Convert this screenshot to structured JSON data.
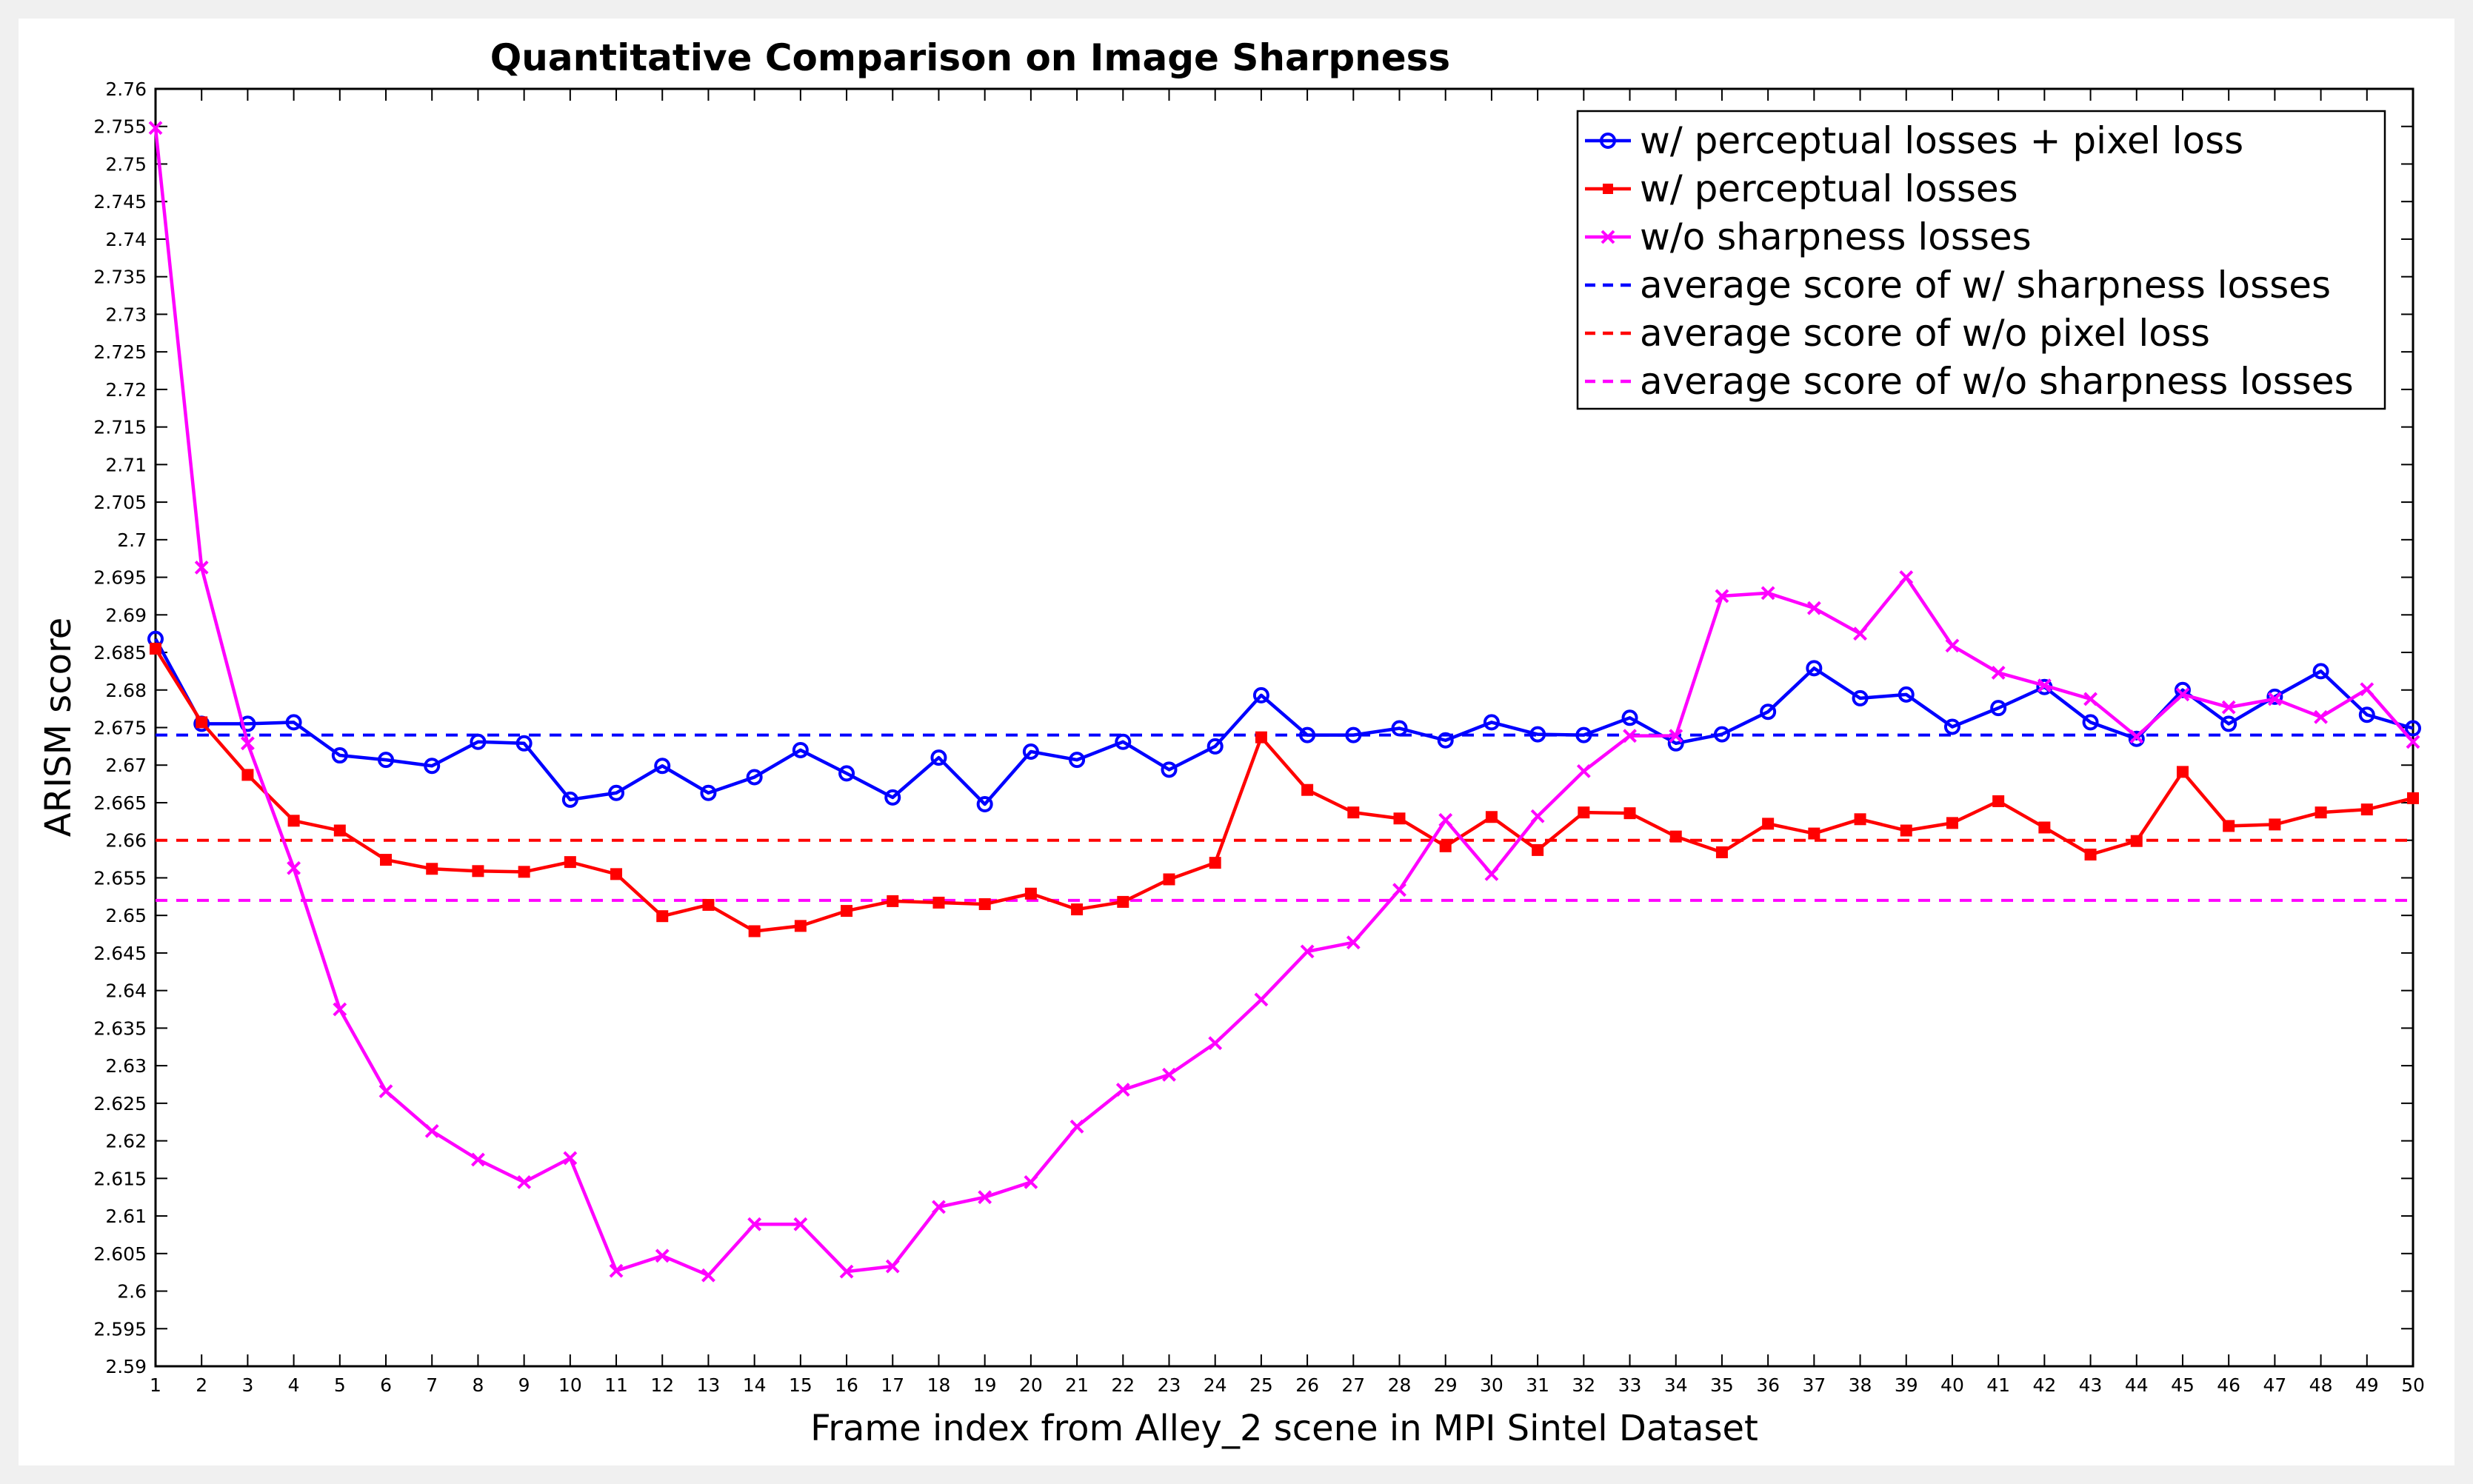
{
  "chart_data": {
    "type": "line",
    "title": "Quantitative Comparison on Image Sharpness",
    "xlabel": "Frame index from Alley_2 scene in MPI Sintel Dataset",
    "ylabel": "ARISM score",
    "xlim": [
      1,
      50
    ],
    "ylim": [
      2.59,
      2.76
    ],
    "x_ticks": [
      1,
      2,
      3,
      4,
      5,
      6,
      7,
      8,
      9,
      10,
      11,
      12,
      13,
      14,
      15,
      16,
      17,
      18,
      19,
      20,
      21,
      22,
      23,
      24,
      25,
      26,
      27,
      28,
      29,
      30,
      31,
      32,
      33,
      34,
      35,
      36,
      37,
      38,
      39,
      40,
      41,
      42,
      43,
      44,
      45,
      46,
      47,
      48,
      49,
      50
    ],
    "y_ticks": [
      2.59,
      2.595,
      2.6,
      2.605,
      2.61,
      2.615,
      2.62,
      2.625,
      2.63,
      2.635,
      2.64,
      2.645,
      2.65,
      2.655,
      2.66,
      2.665,
      2.67,
      2.675,
      2.68,
      2.685,
      2.69,
      2.695,
      2.7,
      2.705,
      2.71,
      2.715,
      2.72,
      2.725,
      2.73,
      2.735,
      2.74,
      2.745,
      2.75,
      2.755,
      2.76
    ],
    "y_tick_labels": [
      "2.59",
      "2.595",
      "2.6",
      "2.605",
      "2.61",
      "2.615",
      "2.62",
      "2.625",
      "2.63",
      "2.635",
      "2.64",
      "2.645",
      "2.65",
      "2.655",
      "2.66",
      "2.665",
      "2.67",
      "2.675",
      "2.68",
      "2.685",
      "2.69",
      "2.695",
      "2.7",
      "2.705",
      "2.71",
      "2.715",
      "2.72",
      "2.725",
      "2.73",
      "2.735",
      "2.74",
      "2.745",
      "2.75",
      "2.755",
      "2.76"
    ],
    "grid": false,
    "legend_position": "top-right",
    "series": [
      {
        "name": "w/ perceptual losses + pixel loss",
        "color": "#0000ff",
        "marker": "circle",
        "line_style": "solid",
        "values": [
          2.6868,
          2.6755,
          2.6755,
          2.6757,
          2.6713,
          2.6707,
          2.6699,
          2.6731,
          2.6729,
          2.6654,
          2.6663,
          2.6699,
          2.6663,
          2.6684,
          2.672,
          2.6689,
          2.6657,
          2.671,
          2.6648,
          2.6718,
          2.6707,
          2.6731,
          2.6694,
          2.6725,
          2.6793,
          2.674,
          2.674,
          2.6749,
          2.6733,
          2.6757,
          2.6741,
          2.674,
          2.6763,
          2.6729,
          2.6741,
          2.6771,
          2.6829,
          2.6789,
          2.6794,
          2.6751,
          2.6776,
          2.6804,
          2.6757,
          2.6735,
          2.68,
          2.6755,
          2.6791,
          2.6825,
          2.6767,
          2.6749
        ]
      },
      {
        "name": "w/ perceptual losses",
        "color": "#ff0000",
        "marker": "square",
        "line_style": "solid",
        "values": [
          2.6855,
          2.6757,
          2.6687,
          2.6626,
          2.6613,
          2.6574,
          2.6562,
          2.6559,
          2.6558,
          2.6571,
          2.6555,
          2.6499,
          2.6514,
          2.6479,
          2.6486,
          2.6506,
          2.6519,
          2.6517,
          2.6515,
          2.6529,
          2.6508,
          2.6518,
          2.6548,
          2.657,
          2.6737,
          2.6667,
          2.6637,
          2.6629,
          2.6592,
          2.6631,
          2.6587,
          2.6637,
          2.6636,
          2.6605,
          2.6584,
          2.6622,
          2.6609,
          2.6628,
          2.6613,
          2.6623,
          2.6652,
          2.6617,
          2.6581,
          2.6599,
          2.6691,
          2.6619,
          2.6621,
          2.6637,
          2.6641,
          2.6656
        ]
      },
      {
        "name": "w/o sharpness losses",
        "color": "#ff00ff",
        "marker": "x",
        "line_style": "solid",
        "values": [
          2.7548,
          2.6963,
          2.6729,
          2.6563,
          2.6375,
          2.6266,
          2.6213,
          2.6175,
          2.6145,
          2.6177,
          2.6027,
          2.6047,
          2.6021,
          2.6089,
          2.6089,
          2.6026,
          2.6033,
          2.6112,
          2.6125,
          2.6145,
          2.6219,
          2.6268,
          2.6288,
          2.633,
          2.6388,
          2.6452,
          2.6464,
          2.6534,
          2.6627,
          2.6555,
          2.6632,
          2.6692,
          2.6739,
          2.6739,
          2.6925,
          2.6929,
          2.6909,
          2.6875,
          2.695,
          2.6859,
          2.6823,
          2.6806,
          2.6788,
          2.6738,
          2.6794,
          2.6777,
          2.6788,
          2.6764,
          2.6801,
          2.6731
        ]
      }
    ],
    "reference_lines": [
      {
        "name": "average score of w/ sharpness losses",
        "color": "#0000ff",
        "line_style": "dashed",
        "value": 2.674
      },
      {
        "name": "average score of w/o pixel loss",
        "color": "#ff0000",
        "line_style": "dashed",
        "value": 2.66
      },
      {
        "name": "average score of w/o sharpness losses",
        "color": "#ff00ff",
        "line_style": "dashed",
        "value": 2.652
      }
    ]
  }
}
